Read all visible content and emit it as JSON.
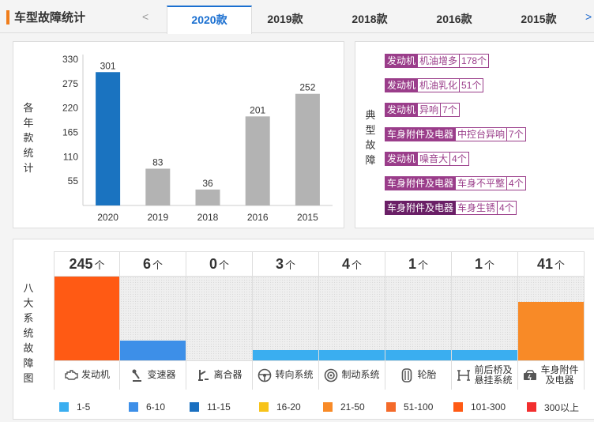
{
  "header": {
    "title": "车型故障统计",
    "prev": "<",
    "next": ">",
    "tabs": [
      {
        "label": "2020款",
        "active": true
      },
      {
        "label": "2019款",
        "active": false
      },
      {
        "label": "2018款",
        "active": false
      },
      {
        "label": "2016款",
        "active": false
      },
      {
        "label": "2015款",
        "active": false
      }
    ]
  },
  "chart_panel": {
    "vlabel": [
      "各",
      "年",
      "款",
      "统",
      "计"
    ],
    "chart_data": {
      "type": "bar",
      "categories": [
        "2020",
        "2019",
        "2018",
        "2016",
        "2015"
      ],
      "values": [
        301,
        83,
        36,
        201,
        252
      ],
      "yticks": [
        "330",
        "275",
        "220",
        "165",
        "110",
        "55"
      ],
      "ylim": [
        0,
        330
      ],
      "highlight_color": "#1a73c0",
      "bar_color": "#b3b3b3"
    }
  },
  "faults_panel": {
    "vlabel": [
      "典",
      "型",
      "故",
      "障"
    ],
    "items": [
      {
        "category": "发动机",
        "desc": "机油增多",
        "count": "178个"
      },
      {
        "category": "发动机",
        "desc": "机油乳化",
        "count": "51个"
      },
      {
        "category": "发动机",
        "desc": "异响",
        "count": "7个"
      },
      {
        "category": "车身附件及电器",
        "desc": "中控台异响",
        "count": "7个"
      },
      {
        "category": "发动机",
        "desc": "噪音大",
        "count": "4个"
      },
      {
        "category": "车身附件及电器",
        "desc": "车身不平整",
        "count": "4个"
      },
      {
        "category": "车身附件及电器",
        "desc": "车身生锈",
        "count": "4个"
      }
    ]
  },
  "systems_panel": {
    "vlabel": [
      "八",
      "大",
      "系",
      "统",
      "故",
      "障",
      "图"
    ],
    "unit": "个",
    "systems": [
      {
        "count": "245",
        "label": "发动机",
        "icon": "engine-icon",
        "level": 1.0,
        "color": "#ff5a14"
      },
      {
        "count": "6",
        "label": "变速器",
        "icon": "gear-shift-icon",
        "level": 0.24,
        "color": "#3d8fe8"
      },
      {
        "count": "0",
        "label": "离合器",
        "icon": "clutch-pedal-icon",
        "level": 0,
        "color": "#3aaef0"
      },
      {
        "count": "3",
        "label": "转向系统",
        "icon": "steering-wheel-icon",
        "level": 0.12,
        "color": "#3aaef0"
      },
      {
        "count": "4",
        "label": "制动系统",
        "icon": "brake-disc-icon",
        "level": 0.12,
        "color": "#3aaef0"
      },
      {
        "count": "1",
        "label": "轮胎",
        "icon": "tire-icon",
        "level": 0.12,
        "color": "#3aaef0"
      },
      {
        "count": "1",
        "label": "前后桥及\n悬挂系统",
        "icon": "suspension-icon",
        "level": 0.12,
        "color": "#3aaef0"
      },
      {
        "count": "41",
        "label": "车身附件\n及电器",
        "icon": "car-body-icon",
        "level": 0.7,
        "color": "#f88a27"
      }
    ],
    "legend": [
      {
        "label": "1-5",
        "color": "#3aaef0"
      },
      {
        "label": "6-10",
        "color": "#3d8fe8"
      },
      {
        "label": "11-15",
        "color": "#1a6fc0"
      },
      {
        "label": "16-20",
        "color": "#f7c31a"
      },
      {
        "label": "21-50",
        "color": "#f88a27"
      },
      {
        "label": "51-100",
        "color": "#f46a2a"
      },
      {
        "label": "101-300",
        "color": "#ff5a14"
      },
      {
        "label": "300以上",
        "color": "#f22e2e"
      }
    ]
  }
}
